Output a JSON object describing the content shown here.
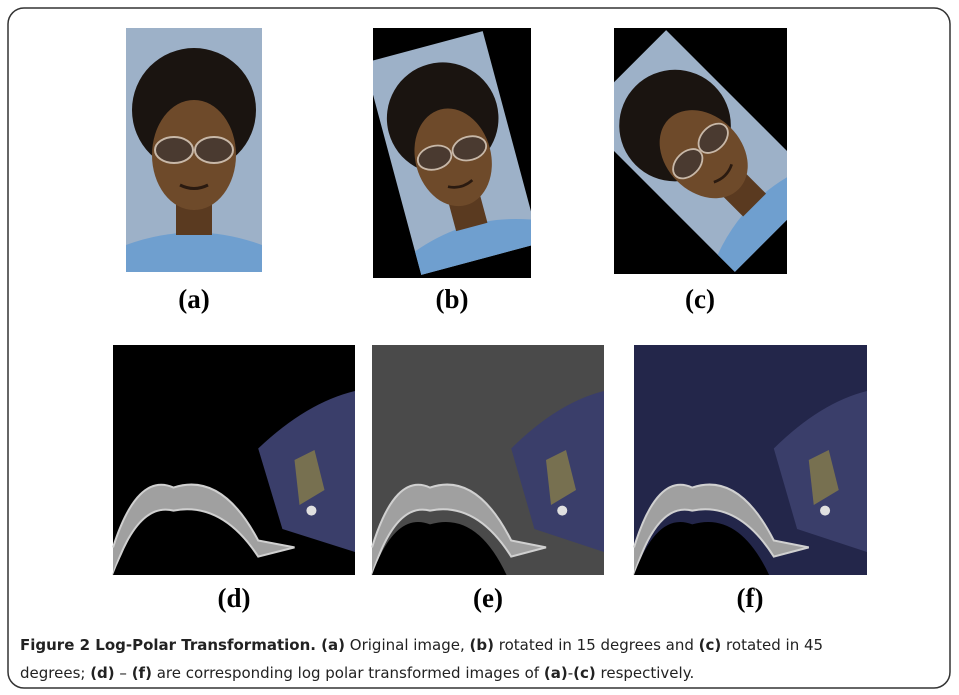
{
  "figure": {
    "panels": [
      {
        "label": "(a)",
        "kind": "photo",
        "angle": 0
      },
      {
        "label": "(b)",
        "kind": "photo",
        "angle": 15
      },
      {
        "label": "(c)",
        "kind": "photo",
        "angle": 45
      },
      {
        "label": "(d)",
        "kind": "logpolar",
        "background": "#000000"
      },
      {
        "label": "(e)",
        "kind": "logpolar",
        "background": "#4a4a4a"
      },
      {
        "label": "(f)",
        "kind": "logpolar",
        "background": "#23264a"
      }
    ],
    "caption": {
      "lines": [
        [
          {
            "text": "Figure 2 Log-Polar Transformation.",
            "bold": true
          },
          {
            "text": " (a)",
            "bold": true
          },
          {
            "text": " Original image, ",
            "bold": false
          },
          {
            "text": "(b)",
            "bold": true
          },
          {
            "text": " rotated in 15 degrees and ",
            "bold": false
          },
          {
            "text": "(c)",
            "bold": true
          },
          {
            "text": " rotated in 45",
            "bold": false
          }
        ],
        [
          {
            "text": "degrees; ",
            "bold": false
          },
          {
            "text": "(d)",
            "bold": true
          },
          {
            "text": " – ",
            "bold": false
          },
          {
            "text": "(f)",
            "bold": true
          },
          {
            "text": " are corresponding log polar transformed images of ",
            "bold": false
          },
          {
            "text": "(a)",
            "bold": true
          },
          {
            "text": "-",
            "bold": false
          },
          {
            "text": "(c)",
            "bold": true
          },
          {
            "text": " respectively.",
            "bold": false
          }
        ]
      ]
    }
  }
}
